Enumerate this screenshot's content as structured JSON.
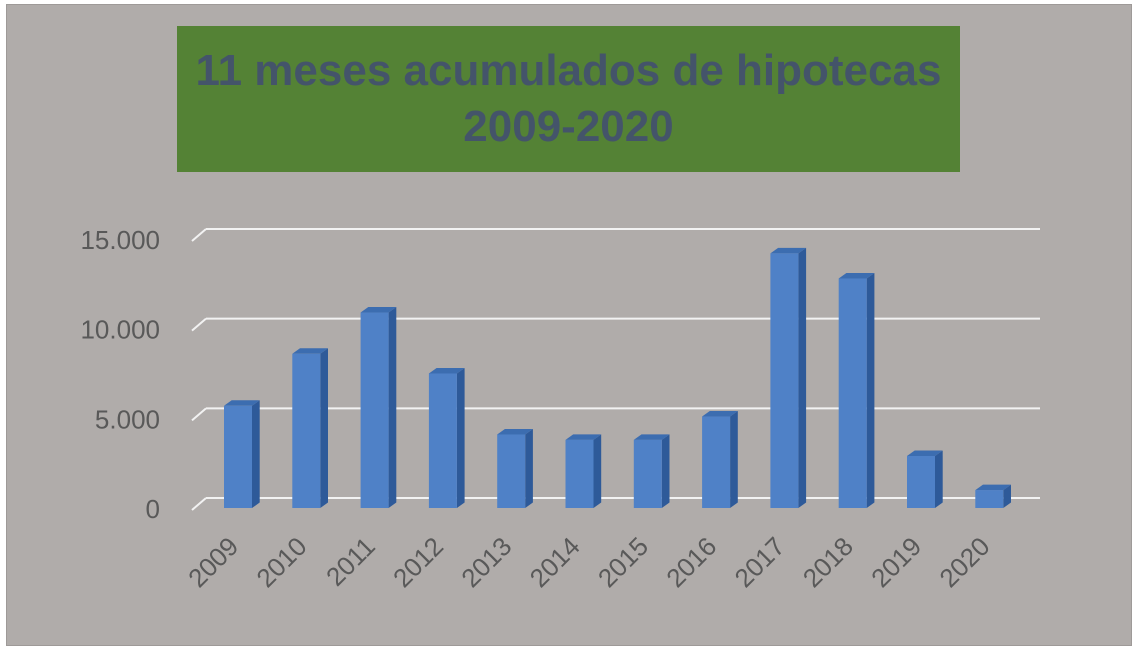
{
  "chart_data": {
    "type": "bar",
    "title_lines": [
      "11 meses acumulados de hipotecas",
      "2009-2020"
    ],
    "categories": [
      "2009",
      "2010",
      "2011",
      "2012",
      "2013",
      "2014",
      "2015",
      "2016",
      "2017",
      "2018",
      "2019",
      "2020"
    ],
    "values": [
      5700,
      8600,
      10900,
      7500,
      4100,
      3800,
      3800,
      5100,
      14200,
      12800,
      2900,
      1000
    ],
    "y_ticks": [
      {
        "value": 0,
        "label": "0"
      },
      {
        "value": 5000,
        "label": "5.000"
      },
      {
        "value": 10000,
        "label": "10.000"
      },
      {
        "value": 15000,
        "label": "15.000"
      }
    ],
    "ylim": [
      0,
      15000
    ],
    "grid": true,
    "bar_style": "3d",
    "colors": {
      "background": "#b0acaa",
      "title_bg": "#548235",
      "title_text": "#44546a",
      "bar_front": "#4f81c7",
      "bar_side": "#2e5a99",
      "bar_top": "#3c6db0",
      "grid": "#f2f2f2",
      "axis_text": "#595959"
    }
  }
}
